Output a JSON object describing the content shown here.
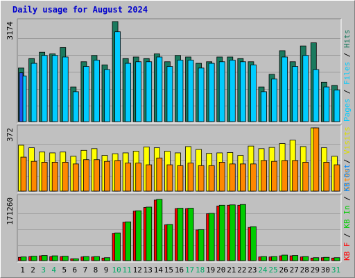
{
  "chart_data": [
    {
      "type": "bar",
      "title": "Daily usage for August 2024",
      "categories": [
        "1",
        "2",
        "3",
        "4",
        "5",
        "6",
        "7",
        "8",
        "9",
        "10",
        "11",
        "12",
        "13",
        "14",
        "15",
        "16",
        "17",
        "18",
        "19",
        "20",
        "21",
        "22",
        "23",
        "24",
        "25",
        "26",
        "27",
        "28",
        "29",
        "30",
        "31"
      ],
      "weekend_categories": [
        "3",
        "4",
        "10",
        "11",
        "17",
        "18",
        "24",
        "25",
        "31"
      ],
      "y_max_label": "3174",
      "ylim": [
        0,
        3174
      ],
      "series": [
        {
          "name": "Hits",
          "color": "#1a7a5e",
          "values": [
            1700,
            2000,
            2200,
            2150,
            2350,
            1100,
            1900,
            2100,
            1800,
            3174,
            2000,
            2050,
            2000,
            2150,
            1900,
            2100,
            2050,
            1850,
            1900,
            2050,
            2050,
            2000,
            1900,
            1100,
            1500,
            2250,
            1900,
            2400,
            2500,
            1250,
            1150
          ]
        },
        {
          "name": "Files",
          "color": "#00ccff",
          "values": [
            1450,
            1850,
            2100,
            2100,
            2050,
            950,
            1750,
            1950,
            1650,
            2850,
            1850,
            1900,
            1900,
            2050,
            1750,
            1950,
            1950,
            1700,
            1850,
            1900,
            1950,
            1900,
            1800,
            950,
            1350,
            2050,
            1750,
            2100,
            1650,
            1100,
            1000
          ]
        },
        {
          "name": "Pages",
          "color": "#2255ee",
          "values": [
            1550,
            0,
            0,
            0,
            0,
            0,
            0,
            0,
            0,
            0,
            0,
            0,
            0,
            0,
            0,
            0,
            0,
            0,
            0,
            0,
            0,
            0,
            0,
            0,
            0,
            0,
            0,
            0,
            0,
            0,
            0
          ]
        }
      ]
    },
    {
      "type": "bar",
      "y_max_label": "372",
      "ylim": [
        0,
        372
      ],
      "series": [
        {
          "name": "Visits",
          "color": "#ffff00",
          "values": [
            270,
            255,
            230,
            225,
            230,
            205,
            240,
            250,
            210,
            220,
            225,
            235,
            260,
            255,
            235,
            225,
            262,
            245,
            222,
            225,
            227,
            210,
            265,
            250,
            257,
            280,
            300,
            262,
            372,
            255,
            205
          ]
        },
        {
          "name": "Sites",
          "color": "#ff8800",
          "values": [
            200,
            175,
            170,
            170,
            170,
            160,
            185,
            185,
            175,
            180,
            165,
            165,
            155,
            195,
            155,
            150,
            165,
            150,
            150,
            170,
            160,
            160,
            160,
            180,
            175,
            180,
            180,
            170,
            372,
            170,
            155
          ]
        }
      ]
    },
    {
      "type": "bar",
      "y_max_label": "171260",
      "ylim": [
        0,
        171260
      ],
      "series": [
        {
          "name": "KB F",
          "color": "#ff0000",
          "values": [
            9000,
            11000,
            13000,
            11000,
            11000,
            5000,
            10000,
            10000,
            7000,
            74000,
            104000,
            134000,
            144000,
            164000,
            97000,
            141000,
            141000,
            83000,
            127000,
            148000,
            150000,
            150000,
            90000,
            10000,
            10000,
            13000,
            13000,
            10000,
            7000,
            8000,
            7000
          ]
        },
        {
          "name": "KB In",
          "color": "#00cc00",
          "values": [
            10000,
            12000,
            14000,
            13000,
            12000,
            5000,
            11000,
            11000,
            8000,
            75000,
            105000,
            135000,
            145000,
            166000,
            98000,
            142000,
            142000,
            84000,
            128000,
            150000,
            151000,
            152000,
            92000,
            11000,
            11000,
            15000,
            14000,
            11000,
            8000,
            9000,
            8000
          ]
        },
        {
          "name": "KB Out",
          "color": "#0088ff",
          "values": [
            0,
            0,
            0,
            0,
            0,
            0,
            0,
            0,
            0,
            0,
            0,
            0,
            0,
            0,
            0,
            0,
            0,
            0,
            0,
            0,
            0,
            0,
            0,
            0,
            0,
            0,
            0,
            0,
            0,
            0,
            0
          ]
        }
      ]
    }
  ],
  "right_labels": {
    "top": [
      {
        "text": "Pages",
        "color": "#00ccff"
      },
      {
        "text": " / ",
        "color": "#000000"
      },
      {
        "text": "Files",
        "color": "#00ccff"
      },
      {
        "text": " / ",
        "color": "#000000"
      },
      {
        "text": "Hits",
        "color": "#1a7a5e"
      }
    ],
    "middle": [
      {
        "text": "Sites",
        "color": "#ff8800"
      },
      {
        "text": " / ",
        "color": "#000000"
      },
      {
        "text": "Visits",
        "color": "#dddd00"
      }
    ],
    "bottom": [
      {
        "text": "KB F",
        "color": "#ff0000"
      },
      {
        "text": " / ",
        "color": "#000000"
      },
      {
        "text": "KB In",
        "color": "#00cc00"
      },
      {
        "text": " / ",
        "color": "#000000"
      },
      {
        "text": "KB Out",
        "color": "#0088ff"
      }
    ]
  },
  "colors": {
    "weekday_tick": "#000000",
    "weekend_tick": "#00aa66"
  }
}
